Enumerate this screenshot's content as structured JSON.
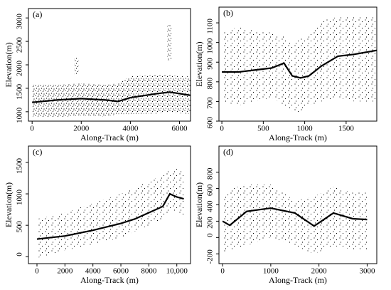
{
  "chart_data": [
    {
      "type": "scatter",
      "title": "(a)",
      "xlabel": "Along-Track (m)",
      "ylabel": "Elevation(m)",
      "xlim": [
        -150,
        6450
      ],
      "ylim": [
        800,
        3200
      ],
      "xticks": [
        0,
        2000,
        4000,
        6000
      ],
      "yticks": [
        1000,
        1500,
        2000,
        2500,
        3000
      ],
      "x": [
        0,
        1000,
        2000,
        3000,
        3500,
        4000,
        5000,
        5600,
        6450
      ],
      "values": [
        1200,
        1250,
        1280,
        1250,
        1220,
        1300,
        1380,
        1420,
        1350
      ],
      "band_low": [
        900,
        880,
        920,
        900,
        950,
        950,
        960,
        980,
        950
      ],
      "band_high": [
        1580,
        1580,
        1600,
        1580,
        1600,
        1760,
        1780,
        1780,
        1750
      ],
      "clusters": [
        {
          "x": 1800,
          "low": 1800,
          "high": 2150
        },
        {
          "x": 5600,
          "low": 2100,
          "high": 2850
        }
      ]
    },
    {
      "type": "scatter",
      "title": "(b)",
      "xlabel": "Along-Track (m)",
      "ylabel": "Elevation(m)",
      "xlim": [
        -35,
        1870
      ],
      "ylim": [
        600,
        1180
      ],
      "xticks": [
        0,
        500,
        1000,
        1500
      ],
      "yticks": [
        600,
        700,
        800,
        900,
        1000,
        1100
      ],
      "x": [
        0,
        200,
        400,
        600,
        750,
        850,
        950,
        1050,
        1200,
        1400,
        1600,
        1870
      ],
      "values": [
        850,
        850,
        860,
        870,
        895,
        830,
        820,
        830,
        880,
        930,
        940,
        960
      ],
      "band_low": [
        700,
        680,
        700,
        720,
        680,
        650,
        640,
        680,
        700,
        720,
        700,
        700
      ],
      "band_high": [
        1050,
        1080,
        1060,
        1050,
        1030,
        1000,
        1020,
        1030,
        1110,
        1130,
        1130,
        1130
      ]
    },
    {
      "type": "scatter",
      "title": "(c)",
      "xlabel": "Along-Track (m)",
      "ylabel": "Elevation(m)",
      "xlim": [
        -610,
        10980
      ],
      "ylim": [
        -110,
        1760
      ],
      "xticks": [
        0,
        2000,
        4000,
        6000,
        8000,
        {
          "value": 10000,
          "label": "10,000"
        }
      ],
      "yticks": [
        0,
        500,
        1000,
        1500
      ],
      "x": [
        0,
        2000,
        4000,
        6000,
        7000,
        8000,
        9000,
        9500,
        10000,
        10500
      ],
      "values": [
        280,
        330,
        420,
        530,
        600,
        700,
        800,
        1000,
        950,
        920
      ],
      "band_low": [
        -20,
        100,
        200,
        300,
        400,
        500,
        600,
        700,
        750,
        600
      ],
      "band_high": [
        600,
        700,
        850,
        1000,
        1100,
        1200,
        1300,
        1380,
        1400,
        1350
      ]
    },
    {
      "type": "scatter",
      "title": "(d)",
      "xlabel": "Along-Track (m)",
      "ylabel": "Elevation(m)",
      "xlim": [
        -75,
        3200
      ],
      "ylim": [
        -320,
        1120
      ],
      "xticks": [
        0,
        1000,
        2000,
        3000
      ],
      "yticks": [
        -200,
        0,
        200,
        400,
        600,
        800
      ],
      "x": [
        0,
        150,
        500,
        1000,
        1500,
        1900,
        2300,
        2700,
        3000
      ],
      "values": [
        200,
        150,
        320,
        360,
        300,
        140,
        300,
        230,
        220
      ],
      "band_low": [
        -200,
        -150,
        -100,
        0,
        -100,
        -200,
        -100,
        -150,
        -150
      ],
      "band_high": [
        500,
        600,
        650,
        650,
        450,
        500,
        620,
        550,
        550
      ]
    }
  ]
}
